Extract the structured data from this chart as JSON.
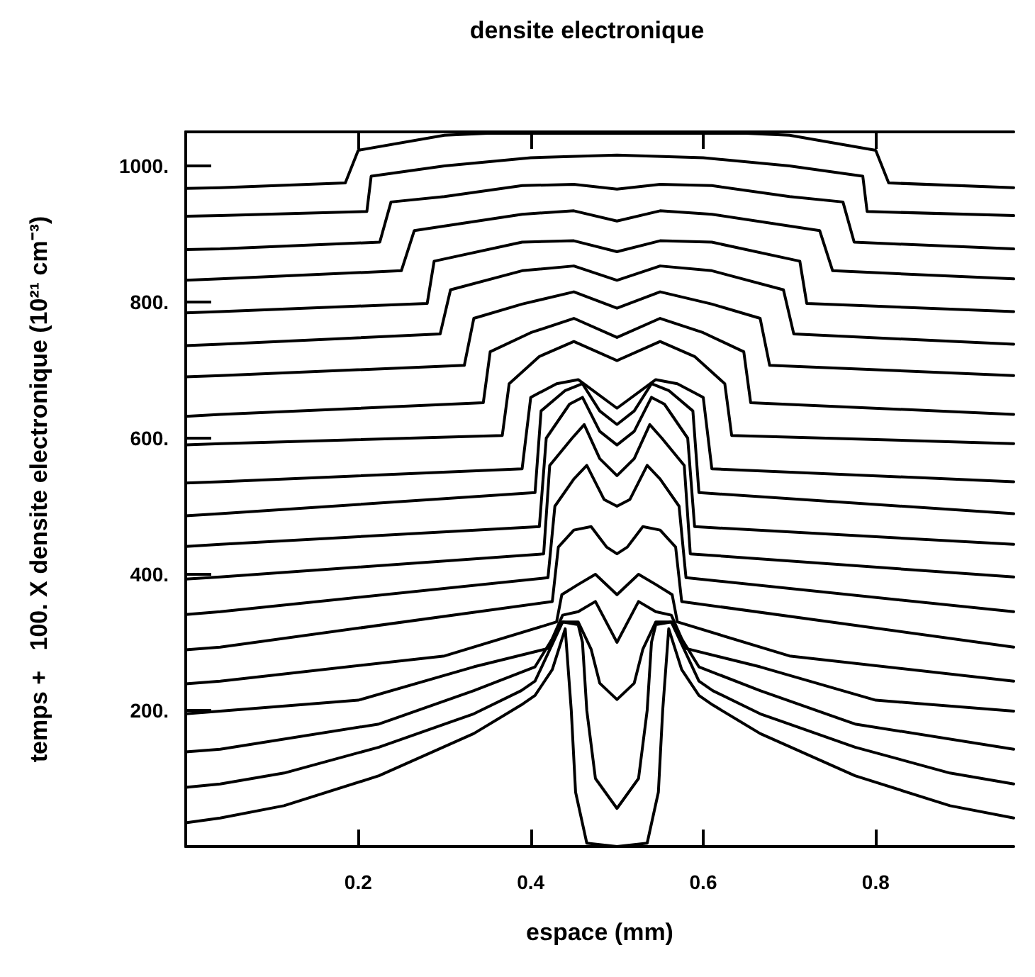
{
  "chart_data": {
    "type": "line",
    "title": "densite electronique",
    "xlabel": "espace (mm)",
    "ylabel": "temps +   100. X densite electronique (10²¹ cm⁻³)",
    "xlim": [
      0,
      0.96
    ],
    "ylim": [
      0,
      1050
    ],
    "xticks": [
      0.2,
      0.4,
      0.6,
      0.8
    ],
    "yticks": [
      {
        "value": 200,
        "label": "200."
      },
      {
        "value": 400,
        "label": "400."
      },
      {
        "value": 600,
        "label": "600."
      },
      {
        "value": 800,
        "label": "800."
      },
      {
        "value": 1000,
        "label": "1000."
      }
    ],
    "marker": "none",
    "line_style": "solid",
    "series": [
      {
        "color": "#000000",
        "x": [
          0,
          0.04,
          0.114,
          0.224,
          0.334,
          0.389,
          0.405,
          0.425,
          0.44,
          0.447,
          0.452,
          0.465,
          0.5,
          0.535,
          0.548,
          0.553,
          0.56,
          0.575,
          0.595,
          0.611,
          0.666,
          0.776,
          0.886,
          0.96
        ],
        "values": [
          35,
          42,
          60,
          104,
          166,
          208,
          222,
          260,
          320,
          200,
          80,
          5,
          0,
          5,
          80,
          200,
          320,
          260,
          222,
          208,
          166,
          104,
          60,
          42
        ]
      },
      {
        "color": "#000000",
        "x": [
          0,
          0.04,
          0.114,
          0.224,
          0.334,
          0.389,
          0.405,
          0.437,
          0.455,
          0.46,
          0.465,
          0.475,
          0.5,
          0.525,
          0.535,
          0.54,
          0.545,
          0.563,
          0.595,
          0.611,
          0.666,
          0.776,
          0.886,
          0.96
        ],
        "values": [
          87,
          92,
          108,
          146,
          195,
          229,
          243,
          330,
          326,
          300,
          200,
          100,
          56,
          100,
          200,
          300,
          326,
          330,
          243,
          229,
          195,
          146,
          108,
          92
        ]
      },
      {
        "color": "#000000",
        "x": [
          0,
          0.04,
          0.224,
          0.334,
          0.405,
          0.437,
          0.455,
          0.47,
          0.48,
          0.5,
          0.52,
          0.53,
          0.545,
          0.563,
          0.595,
          0.666,
          0.776,
          0.96
        ],
        "values": [
          139,
          143,
          180,
          229,
          264,
          330,
          330,
          290,
          240,
          216,
          240,
          290,
          330,
          330,
          264,
          229,
          180,
          143
        ]
      },
      {
        "color": "#000000",
        "x": [
          0,
          0.04,
          0.2,
          0.334,
          0.42,
          0.437,
          0.455,
          0.475,
          0.5,
          0.525,
          0.545,
          0.563,
          0.58,
          0.666,
          0.8,
          0.96
        ],
        "values": [
          195,
          199,
          215,
          264,
          291,
          340,
          345,
          360,
          300,
          360,
          345,
          340,
          291,
          264,
          215,
          199
        ]
      },
      {
        "color": "#000000",
        "x": [
          0,
          0.04,
          0.3,
          0.43,
          0.436,
          0.455,
          0.475,
          0.5,
          0.525,
          0.545,
          0.564,
          0.57,
          0.7,
          0.96
        ],
        "values": [
          239,
          243,
          280,
          330,
          370,
          385,
          400,
          370,
          400,
          385,
          370,
          330,
          280,
          243
        ]
      },
      {
        "color": "#000000",
        "x": [
          0,
          0.04,
          0.425,
          0.432,
          0.45,
          0.47,
          0.488,
          0.5,
          0.512,
          0.53,
          0.55,
          0.568,
          0.575,
          0.96
        ],
        "values": [
          289,
          293,
          360,
          440,
          465,
          470,
          440,
          430,
          440,
          470,
          465,
          440,
          360,
          293
        ]
      },
      {
        "color": "#000000",
        "x": [
          0,
          0.04,
          0.42,
          0.428,
          0.45,
          0.465,
          0.485,
          0.5,
          0.515,
          0.535,
          0.55,
          0.572,
          0.58,
          0.96
        ],
        "values": [
          341,
          345,
          395,
          500,
          540,
          560,
          510,
          500,
          510,
          560,
          540,
          500,
          395,
          345
        ]
      },
      {
        "color": "#000000",
        "x": [
          0,
          0.04,
          0.415,
          0.422,
          0.448,
          0.462,
          0.48,
          0.5,
          0.52,
          0.538,
          0.552,
          0.578,
          0.585,
          0.96
        ],
        "values": [
          393,
          396,
          430,
          560,
          600,
          620,
          570,
          545,
          570,
          620,
          600,
          560,
          430,
          396
        ]
      },
      {
        "color": "#000000",
        "x": [
          0,
          0.04,
          0.41,
          0.418,
          0.445,
          0.46,
          0.48,
          0.5,
          0.52,
          0.54,
          0.555,
          0.582,
          0.59,
          0.96
        ],
        "values": [
          441,
          444,
          470,
          600,
          650,
          660,
          610,
          590,
          610,
          660,
          650,
          600,
          470,
          444
        ]
      },
      {
        "color": "#000000",
        "x": [
          0,
          0.04,
          0.405,
          0.412,
          0.44,
          0.46,
          0.48,
          0.5,
          0.52,
          0.54,
          0.56,
          0.588,
          0.595,
          0.96
        ],
        "values": [
          486,
          489,
          520,
          640,
          670,
          680,
          640,
          620,
          640,
          680,
          670,
          640,
          520,
          489
        ]
      },
      {
        "color": "#000000",
        "x": [
          0,
          0.04,
          0.39,
          0.4,
          0.43,
          0.455,
          0.5,
          0.545,
          0.57,
          0.6,
          0.61,
          0.96
        ],
        "values": [
          534,
          536,
          555,
          660,
          680,
          686,
          644,
          686,
          680,
          660,
          555,
          536
        ]
      },
      {
        "color": "#000000",
        "x": [
          0,
          0.04,
          0.367,
          0.375,
          0.41,
          0.45,
          0.5,
          0.55,
          0.59,
          0.625,
          0.633,
          0.96
        ],
        "values": [
          590,
          592,
          604,
          680,
          720,
          742,
          714,
          742,
          720,
          680,
          604,
          592
        ]
      },
      {
        "color": "#000000",
        "x": [
          0,
          0.04,
          0.345,
          0.353,
          0.4,
          0.45,
          0.5,
          0.55,
          0.6,
          0.647,
          0.655,
          0.96
        ],
        "values": [
          632,
          635,
          652,
          727,
          755,
          776,
          748,
          776,
          755,
          727,
          652,
          635
        ]
      },
      {
        "color": "#000000",
        "x": [
          0,
          0.04,
          0.323,
          0.334,
          0.39,
          0.45,
          0.5,
          0.55,
          0.61,
          0.666,
          0.677,
          0.96
        ],
        "values": [
          690,
          692,
          707,
          776,
          797,
          815,
          791,
          815,
          797,
          776,
          707,
          692
        ]
      },
      {
        "color": "#000000",
        "x": [
          0,
          0.04,
          0.295,
          0.307,
          0.39,
          0.45,
          0.5,
          0.55,
          0.61,
          0.693,
          0.705,
          0.96
        ],
        "values": [
          736,
          738,
          753,
          818,
          846,
          853,
          832,
          853,
          846,
          818,
          753,
          738
        ]
      },
      {
        "color": "#000000",
        "x": [
          0,
          0.04,
          0.28,
          0.288,
          0.39,
          0.45,
          0.5,
          0.55,
          0.61,
          0.712,
          0.72,
          0.96
        ],
        "values": [
          784,
          786,
          798,
          860,
          888,
          890,
          874,
          890,
          888,
          860,
          798,
          786
        ]
      },
      {
        "color": "#000000",
        "x": [
          0,
          0.04,
          0.25,
          0.265,
          0.39,
          0.45,
          0.5,
          0.55,
          0.61,
          0.735,
          0.75,
          0.96
        ],
        "values": [
          832,
          834,
          846,
          905,
          929,
          934,
          919,
          934,
          929,
          905,
          846,
          834
        ]
      },
      {
        "color": "#000000",
        "x": [
          0,
          0.04,
          0.225,
          0.238,
          0.3,
          0.39,
          0.45,
          0.5,
          0.55,
          0.61,
          0.7,
          0.762,
          0.775,
          0.96
        ],
        "values": [
          877,
          878,
          888,
          947,
          955,
          971,
          973,
          966,
          973,
          971,
          955,
          947,
          888,
          878
        ]
      },
      {
        "color": "#000000",
        "x": [
          0,
          0.04,
          0.21,
          0.215,
          0.3,
          0.4,
          0.5,
          0.6,
          0.7,
          0.785,
          0.79,
          0.96
        ],
        "values": [
          926,
          927,
          933,
          985,
          1000,
          1012,
          1016,
          1012,
          1000,
          985,
          933,
          927
        ]
      },
      {
        "color": "#000000",
        "x": [
          0,
          0.04,
          0.185,
          0.2,
          0.3,
          0.35,
          0.5,
          0.65,
          0.7,
          0.8,
          0.815,
          0.96
        ],
        "values": [
          967,
          968,
          975,
          1023,
          1045,
          1048,
          1048,
          1048,
          1045,
          1023,
          975,
          968
        ]
      }
    ]
  }
}
